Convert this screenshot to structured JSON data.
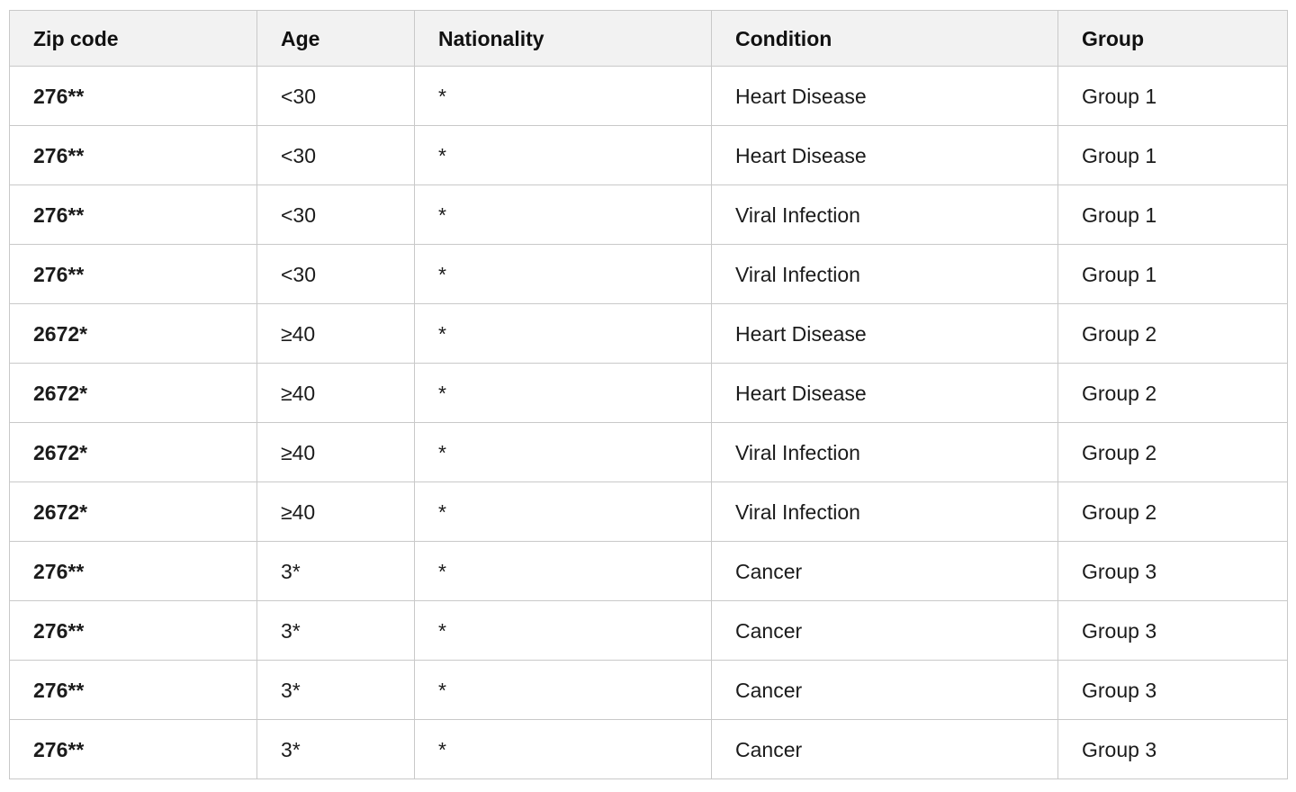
{
  "table": {
    "columns": [
      "Zip code",
      "Age",
      "Nationality",
      "Condition",
      "Group"
    ],
    "rows": [
      [
        "276**",
        "<30",
        "*",
        "Heart Disease",
        "Group 1"
      ],
      [
        "276**",
        "<30",
        "*",
        "Heart Disease",
        "Group 1"
      ],
      [
        "276**",
        "<30",
        "*",
        "Viral Infection",
        "Group 1"
      ],
      [
        "276**",
        "<30",
        "*",
        "Viral Infection",
        "Group 1"
      ],
      [
        "2672*",
        "≥40",
        "*",
        "Heart Disease",
        "Group 2"
      ],
      [
        "2672*",
        "≥40",
        "*",
        "Heart Disease",
        "Group 2"
      ],
      [
        "2672*",
        "≥40",
        "*",
        "Viral Infection",
        "Group 2"
      ],
      [
        "2672*",
        "≥40",
        "*",
        "Viral Infection",
        "Group 2"
      ],
      [
        "276**",
        "3*",
        "*",
        "Cancer",
        "Group 3"
      ],
      [
        "276**",
        "3*",
        "*",
        "Cancer",
        "Group 3"
      ],
      [
        "276**",
        "3*",
        "*",
        "Cancer",
        "Group 3"
      ],
      [
        "276**",
        "3*",
        "*",
        "Cancer",
        "Group 3"
      ]
    ],
    "colors": {
      "header_background": "#f2f2f2",
      "border": "#c9c9c9",
      "text": "#1b1b1b"
    }
  }
}
